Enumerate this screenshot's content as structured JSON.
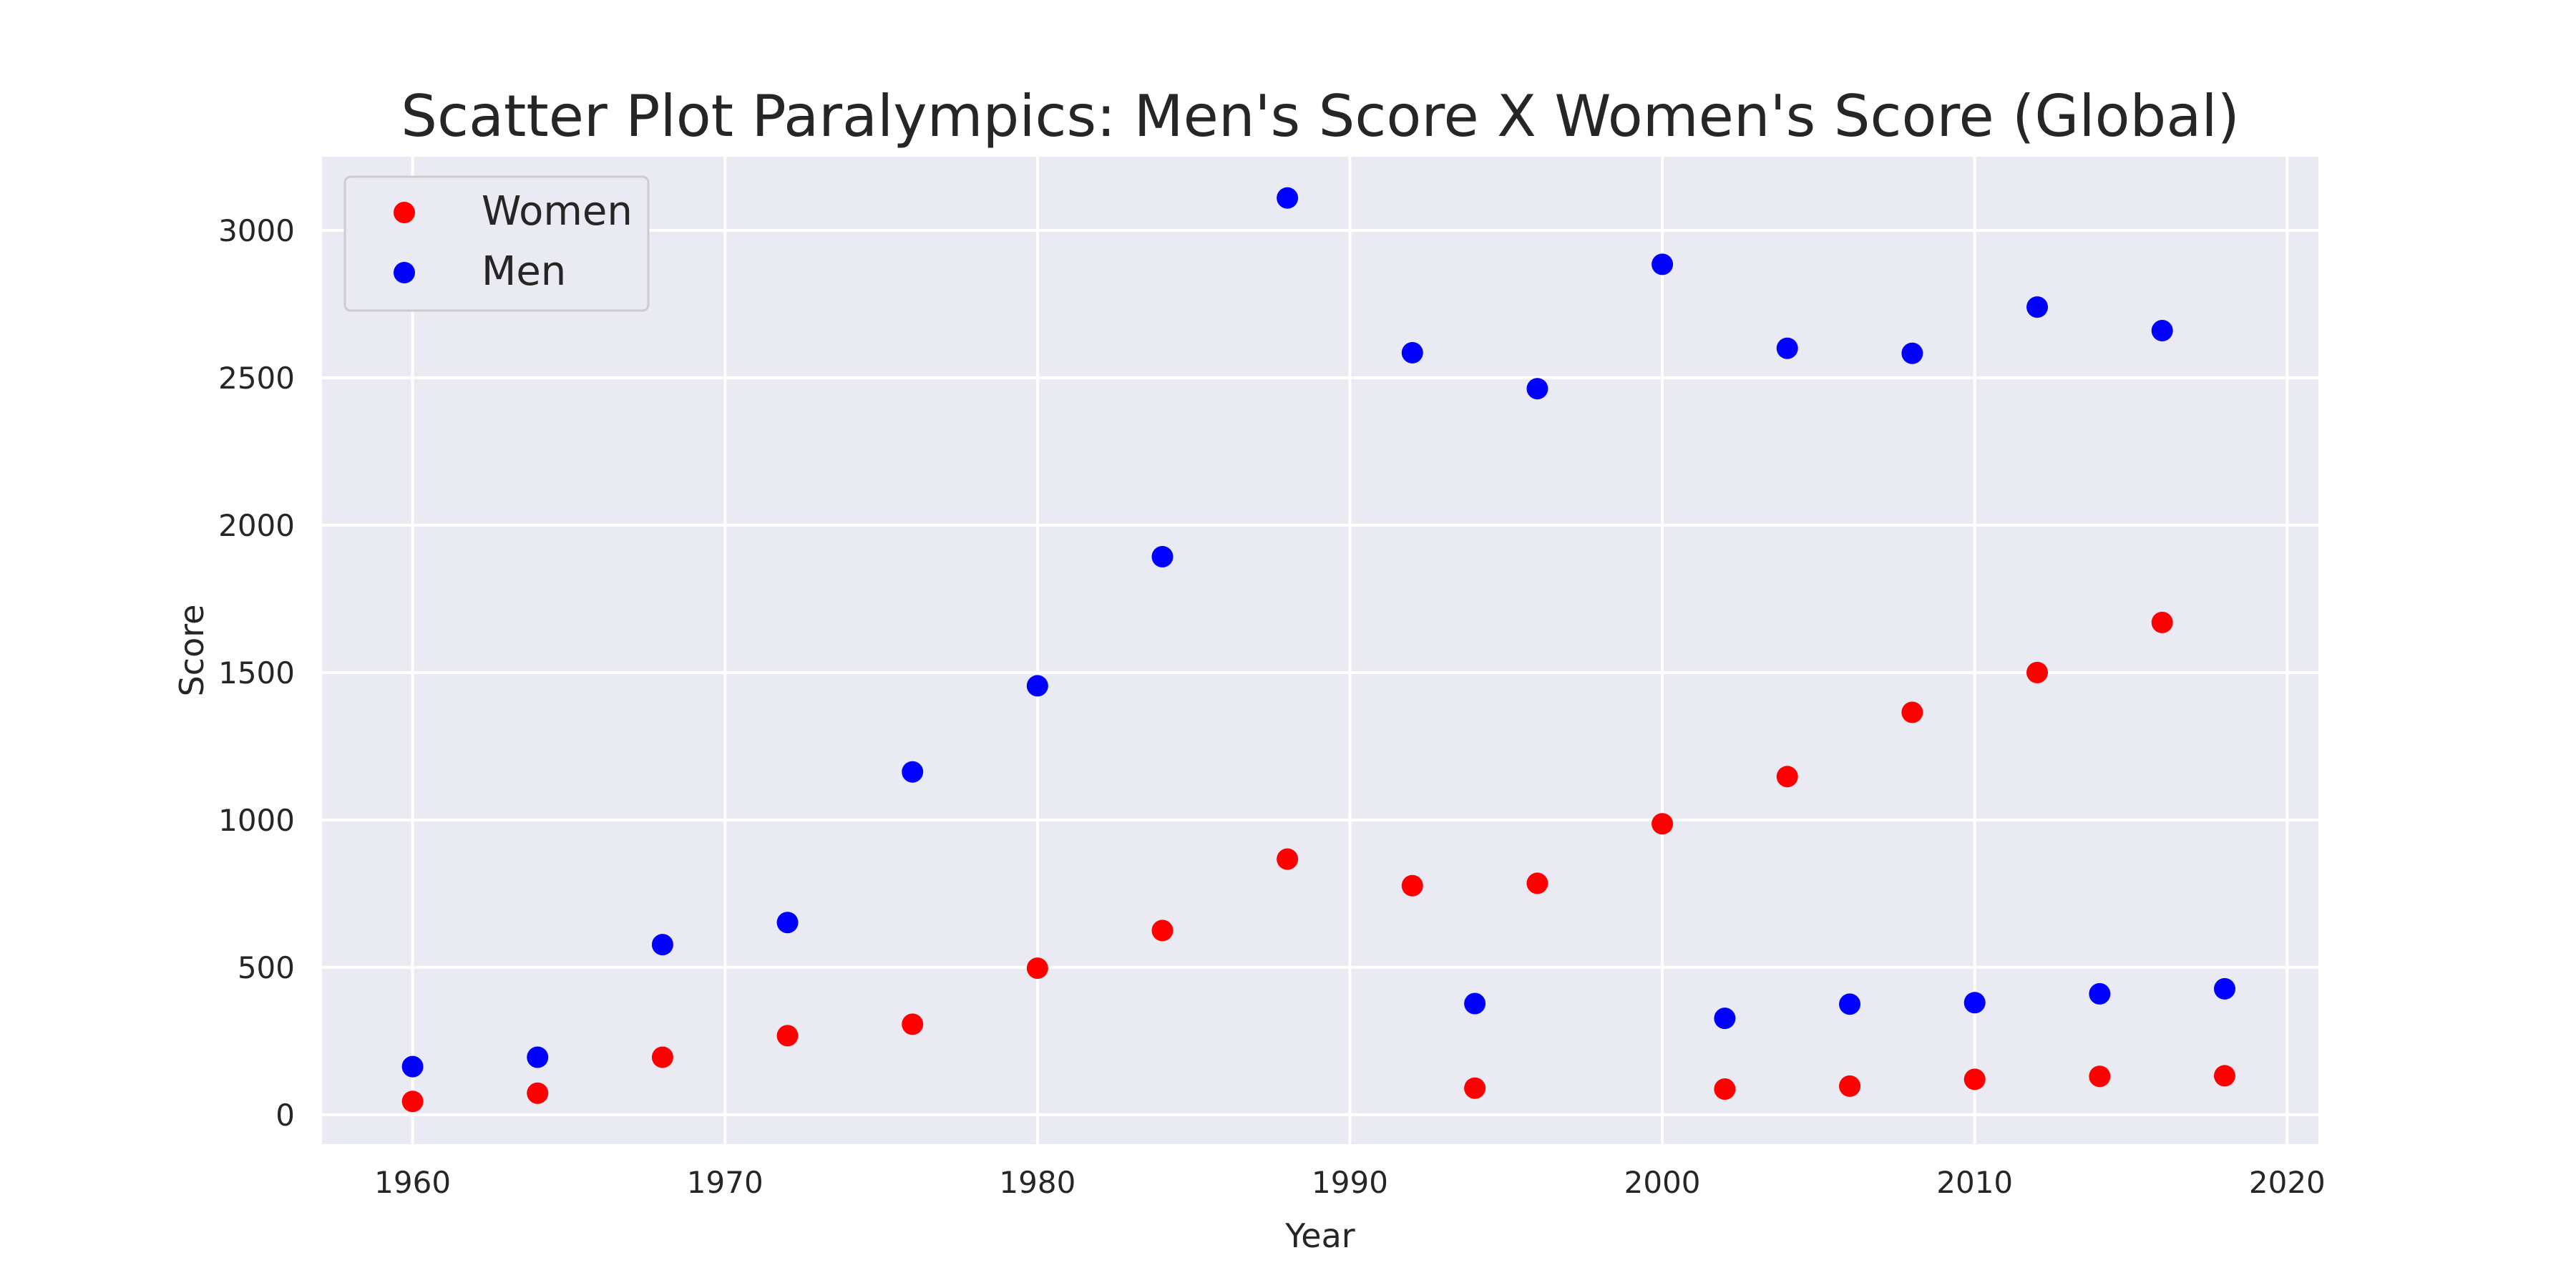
{
  "chart_data": {
    "type": "scatter",
    "title": "Scatter Plot Paralympics: Men's Score X Women's Score (Global)",
    "xlabel": "Year",
    "ylabel": "Score",
    "xlim": [
      1957.1,
      2021
    ],
    "ylim": [
      -100,
      3250
    ],
    "xticks": [
      1960,
      1970,
      1980,
      1990,
      2000,
      2010,
      2020
    ],
    "yticks": [
      0,
      500,
      1000,
      1500,
      2000,
      2500,
      3000
    ],
    "grid": true,
    "legend_position": "top-left",
    "background_color": "#eaeaf2",
    "series": [
      {
        "name": "Women",
        "color": "#ff0000",
        "x": [
          1960,
          1964,
          1968,
          1972,
          1976,
          1980,
          1984,
          1988,
          1992,
          1994,
          1996,
          2000,
          2002,
          2004,
          2006,
          2008,
          2010,
          2012,
          2014,
          2016,
          2018
        ],
        "y": [
          45,
          73,
          195,
          268,
          307,
          497,
          625,
          867,
          777,
          90,
          785,
          987,
          87,
          1147,
          97,
          1365,
          120,
          1500,
          130,
          1670,
          132
        ]
      },
      {
        "name": "Men",
        "color": "#0000ff",
        "x": [
          1960,
          1964,
          1968,
          1972,
          1976,
          1980,
          1984,
          1988,
          1992,
          1994,
          1996,
          2000,
          2002,
          2004,
          2006,
          2008,
          2010,
          2012,
          2014,
          2016,
          2018
        ],
        "y": [
          163,
          195,
          577,
          652,
          1163,
          1455,
          1893,
          3110,
          2585,
          377,
          2463,
          2885,
          327,
          2600,
          375,
          2583,
          380,
          2740,
          410,
          2660,
          427
        ]
      }
    ]
  }
}
